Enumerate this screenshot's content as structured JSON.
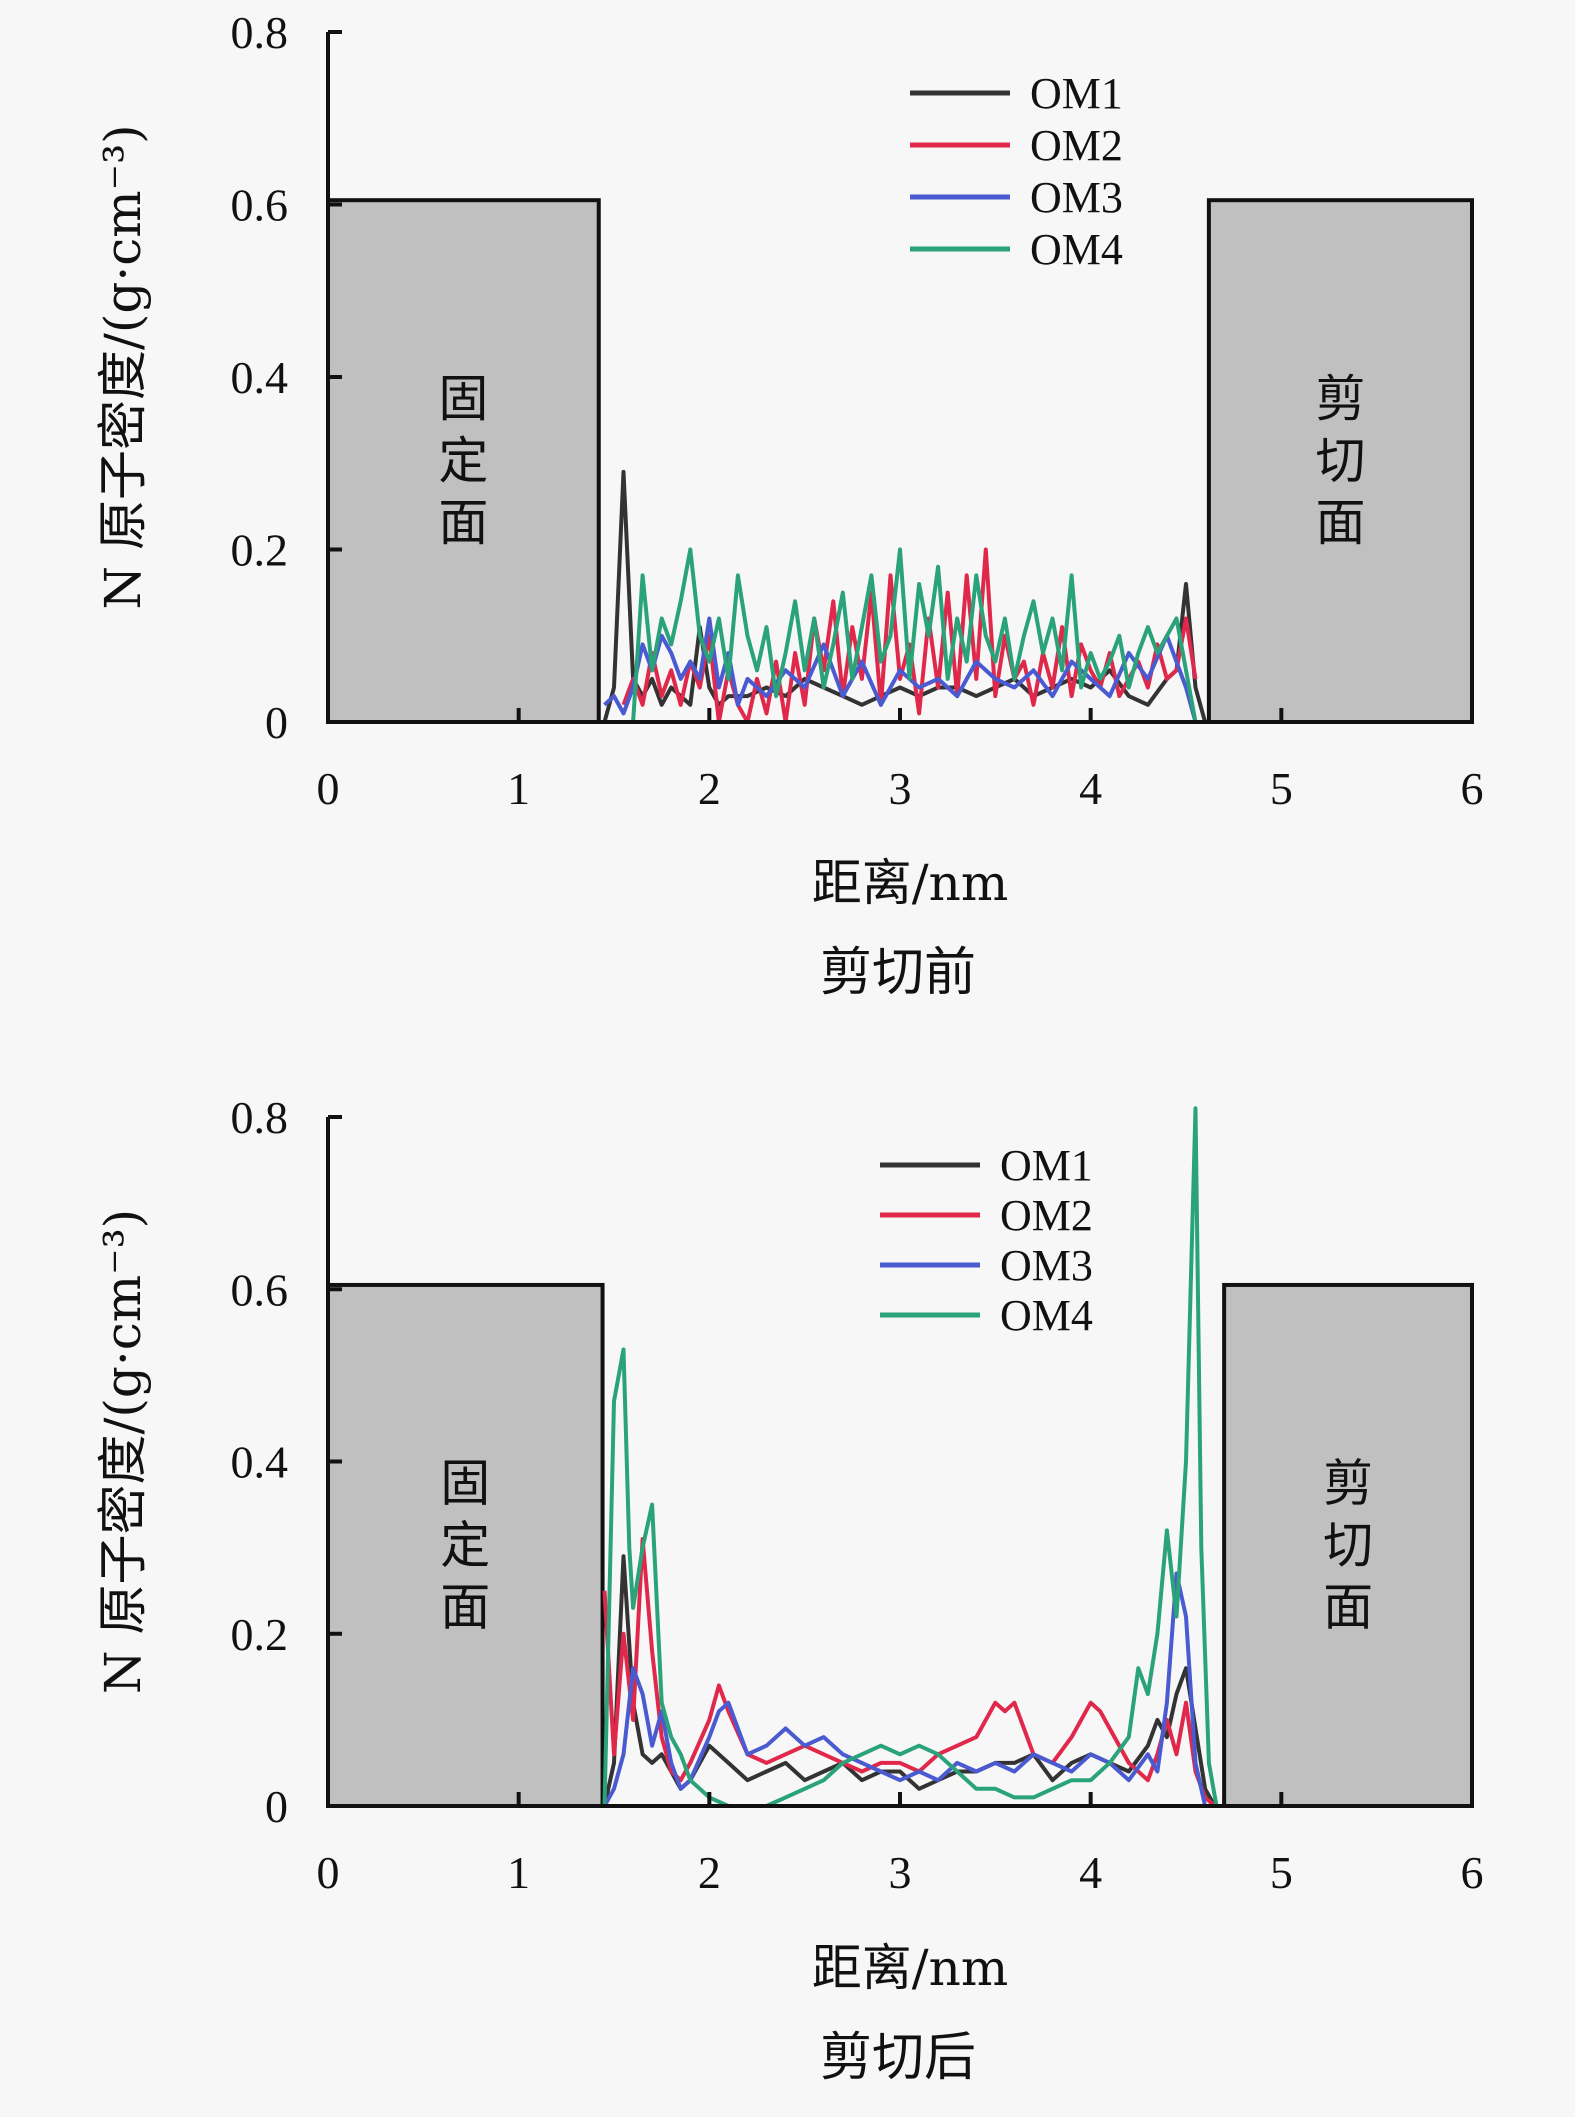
{
  "chart_data": [
    {
      "type": "line",
      "caption": "剪切前",
      "xlabel": "距离/nm",
      "ylabel": "N 原子密度/(g·cm⁻³)",
      "xlim": [
        0,
        6
      ],
      "ylim": [
        0,
        0.8
      ],
      "xticks": [
        "0",
        "1",
        "2",
        "3",
        "4",
        "5",
        "6"
      ],
      "yticks": [
        "0",
        "0.2",
        "0.4",
        "0.6",
        "0.8"
      ],
      "legend_position": "top-center",
      "regions": [
        {
          "label": "固定面",
          "x0": 0,
          "x1": 1.42,
          "y": 0.605
        },
        {
          "label": "剪切面",
          "x0": 4.62,
          "x1": 6.0,
          "y": 0.605
        }
      ],
      "series": [
        {
          "name": "OM1",
          "color": "#333333",
          "x": [
            1.45,
            1.5,
            1.55,
            1.6,
            1.65,
            1.7,
            1.75,
            1.8,
            1.85,
            1.9,
            1.95,
            2.0,
            2.05,
            2.1,
            2.2,
            2.3,
            2.4,
            2.5,
            2.6,
            2.7,
            2.8,
            2.9,
            3.0,
            3.1,
            3.2,
            3.3,
            3.4,
            3.5,
            3.6,
            3.7,
            3.8,
            3.9,
            4.0,
            4.1,
            4.2,
            4.3,
            4.4,
            4.45,
            4.5,
            4.55,
            4.6
          ],
          "y": [
            0.0,
            0.04,
            0.29,
            0.05,
            0.03,
            0.05,
            0.02,
            0.04,
            0.03,
            0.02,
            0.11,
            0.04,
            0.02,
            0.03,
            0.03,
            0.04,
            0.03,
            0.05,
            0.04,
            0.03,
            0.02,
            0.03,
            0.04,
            0.03,
            0.04,
            0.04,
            0.03,
            0.04,
            0.05,
            0.03,
            0.04,
            0.05,
            0.04,
            0.06,
            0.03,
            0.02,
            0.05,
            0.06,
            0.16,
            0.04,
            0.0
          ]
        },
        {
          "name": "OM2",
          "color": "#e0294a",
          "x": [
            1.55,
            1.6,
            1.65,
            1.7,
            1.75,
            1.8,
            1.85,
            1.9,
            1.95,
            2.0,
            2.05,
            2.1,
            2.15,
            2.2,
            2.25,
            2.3,
            2.35,
            2.4,
            2.45,
            2.5,
            2.55,
            2.6,
            2.65,
            2.7,
            2.75,
            2.8,
            2.85,
            2.9,
            2.95,
            3.0,
            3.05,
            3.1,
            3.15,
            3.2,
            3.25,
            3.3,
            3.35,
            3.4,
            3.45,
            3.5,
            3.55,
            3.6,
            3.65,
            3.7,
            3.75,
            3.8,
            3.85,
            3.9,
            3.95,
            4.0,
            4.05,
            4.1,
            4.15,
            4.2,
            4.25,
            4.3,
            4.35,
            4.4,
            4.45,
            4.5,
            4.55
          ],
          "y": [
            0.02,
            0.05,
            0.02,
            0.08,
            0.03,
            0.06,
            0.02,
            0.07,
            0.04,
            0.1,
            0.0,
            0.06,
            0.02,
            0.0,
            0.05,
            0.01,
            0.07,
            0.0,
            0.08,
            0.02,
            0.12,
            0.06,
            0.14,
            0.03,
            0.11,
            0.05,
            0.15,
            0.02,
            0.17,
            0.05,
            0.09,
            0.01,
            0.12,
            0.04,
            0.15,
            0.03,
            0.17,
            0.05,
            0.2,
            0.03,
            0.1,
            0.05,
            0.07,
            0.02,
            0.08,
            0.04,
            0.11,
            0.03,
            0.09,
            0.06,
            0.04,
            0.08,
            0.03,
            0.05,
            0.07,
            0.04,
            0.09,
            0.05,
            0.06,
            0.12,
            0.05
          ]
        },
        {
          "name": "OM3",
          "color": "#4a5ad0",
          "x": [
            1.45,
            1.5,
            1.55,
            1.6,
            1.65,
            1.7,
            1.75,
            1.8,
            1.85,
            1.9,
            1.95,
            2.0,
            2.05,
            2.1,
            2.15,
            2.2,
            2.3,
            2.4,
            2.5,
            2.6,
            2.7,
            2.8,
            2.9,
            3.0,
            3.1,
            3.2,
            3.3,
            3.4,
            3.5,
            3.6,
            3.7,
            3.8,
            3.9,
            4.0,
            4.1,
            4.2,
            4.3,
            4.4,
            4.5,
            4.55
          ],
          "y": [
            0.02,
            0.03,
            0.01,
            0.04,
            0.09,
            0.06,
            0.1,
            0.08,
            0.05,
            0.07,
            0.05,
            0.12,
            0.04,
            0.08,
            0.02,
            0.05,
            0.03,
            0.06,
            0.04,
            0.09,
            0.03,
            0.07,
            0.02,
            0.06,
            0.04,
            0.05,
            0.03,
            0.07,
            0.05,
            0.04,
            0.06,
            0.03,
            0.07,
            0.05,
            0.03,
            0.08,
            0.05,
            0.1,
            0.04,
            0.0
          ]
        },
        {
          "name": "OM4",
          "color": "#2aa37a",
          "x": [
            1.6,
            1.65,
            1.7,
            1.75,
            1.8,
            1.85,
            1.9,
            1.95,
            2.0,
            2.05,
            2.1,
            2.15,
            2.2,
            2.25,
            2.3,
            2.35,
            2.4,
            2.45,
            2.5,
            2.55,
            2.6,
            2.65,
            2.7,
            2.75,
            2.8,
            2.85,
            2.9,
            2.95,
            3.0,
            3.05,
            3.1,
            3.15,
            3.2,
            3.25,
            3.3,
            3.35,
            3.4,
            3.45,
            3.5,
            3.55,
            3.6,
            3.65,
            3.7,
            3.75,
            3.8,
            3.85,
            3.9,
            3.95,
            4.0,
            4.05,
            4.1,
            4.15,
            4.2,
            4.25,
            4.3,
            4.35,
            4.4,
            4.45,
            4.5,
            4.55
          ],
          "y": [
            0.0,
            0.17,
            0.06,
            0.12,
            0.09,
            0.14,
            0.2,
            0.1,
            0.07,
            0.12,
            0.05,
            0.17,
            0.1,
            0.06,
            0.11,
            0.03,
            0.08,
            0.14,
            0.06,
            0.12,
            0.04,
            0.09,
            0.15,
            0.05,
            0.11,
            0.17,
            0.07,
            0.1,
            0.2,
            0.05,
            0.16,
            0.1,
            0.18,
            0.05,
            0.12,
            0.07,
            0.17,
            0.1,
            0.07,
            0.12,
            0.05,
            0.1,
            0.14,
            0.08,
            0.12,
            0.06,
            0.17,
            0.04,
            0.08,
            0.05,
            0.07,
            0.1,
            0.04,
            0.08,
            0.11,
            0.08,
            0.1,
            0.12,
            0.06,
            0.0
          ]
        }
      ]
    },
    {
      "type": "line",
      "caption": "剪切后",
      "xlabel": "距离/nm",
      "ylabel": "N 原子密度/(g·cm⁻³)",
      "xlim": [
        0,
        6
      ],
      "ylim": [
        0,
        0.8
      ],
      "xticks": [
        "0",
        "1",
        "2",
        "3",
        "4",
        "5",
        "6"
      ],
      "yticks": [
        "0",
        "0.2",
        "0.4",
        "0.6",
        "0.8"
      ],
      "legend_position": "top-center",
      "regions": [
        {
          "label": "固定面",
          "x0": 0,
          "x1": 1.44,
          "y": 0.605
        },
        {
          "label": "剪切面",
          "x0": 4.7,
          "x1": 6.0,
          "y": 0.605
        }
      ],
      "series": [
        {
          "name": "OM1",
          "color": "#333333",
          "x": [
            1.45,
            1.5,
            1.55,
            1.6,
            1.65,
            1.7,
            1.75,
            1.8,
            1.85,
            1.9,
            2.0,
            2.1,
            2.2,
            2.3,
            2.4,
            2.5,
            2.6,
            2.7,
            2.8,
            2.9,
            3.0,
            3.1,
            3.2,
            3.3,
            3.4,
            3.5,
            3.6,
            3.7,
            3.8,
            3.9,
            4.0,
            4.1,
            4.2,
            4.3,
            4.35,
            4.4,
            4.45,
            4.5,
            4.55,
            4.6,
            4.65
          ],
          "y": [
            0.0,
            0.05,
            0.29,
            0.12,
            0.06,
            0.05,
            0.06,
            0.04,
            0.02,
            0.03,
            0.07,
            0.05,
            0.03,
            0.04,
            0.05,
            0.03,
            0.04,
            0.05,
            0.03,
            0.04,
            0.04,
            0.02,
            0.03,
            0.04,
            0.04,
            0.05,
            0.05,
            0.06,
            0.03,
            0.05,
            0.06,
            0.05,
            0.04,
            0.07,
            0.1,
            0.08,
            0.13,
            0.16,
            0.09,
            0.02,
            0.0
          ]
        },
        {
          "name": "OM2",
          "color": "#e0294a",
          "x": [
            1.45,
            1.5,
            1.55,
            1.6,
            1.65,
            1.7,
            1.75,
            1.8,
            1.85,
            1.9,
            2.0,
            2.05,
            2.1,
            2.2,
            2.3,
            2.4,
            2.5,
            2.6,
            2.7,
            2.8,
            2.9,
            3.0,
            3.1,
            3.2,
            3.3,
            3.4,
            3.5,
            3.55,
            3.6,
            3.7,
            3.8,
            3.9,
            4.0,
            4.05,
            4.1,
            4.2,
            4.3,
            4.35,
            4.4,
            4.45,
            4.5,
            4.55,
            4.6,
            4.65
          ],
          "y": [
            0.25,
            0.06,
            0.2,
            0.1,
            0.31,
            0.18,
            0.08,
            0.04,
            0.03,
            0.05,
            0.1,
            0.14,
            0.11,
            0.06,
            0.05,
            0.06,
            0.07,
            0.06,
            0.05,
            0.04,
            0.05,
            0.05,
            0.04,
            0.06,
            0.07,
            0.08,
            0.12,
            0.11,
            0.12,
            0.06,
            0.05,
            0.08,
            0.12,
            0.11,
            0.09,
            0.05,
            0.03,
            0.06,
            0.1,
            0.06,
            0.12,
            0.04,
            0.01,
            0.0
          ]
        },
        {
          "name": "OM3",
          "color": "#4a5ad0",
          "x": [
            1.45,
            1.5,
            1.55,
            1.6,
            1.65,
            1.7,
            1.75,
            1.8,
            1.85,
            1.9,
            2.0,
            2.05,
            2.1,
            2.2,
            2.3,
            2.4,
            2.5,
            2.6,
            2.7,
            2.8,
            2.9,
            3.0,
            3.1,
            3.2,
            3.3,
            3.4,
            3.5,
            3.6,
            3.7,
            3.8,
            3.9,
            4.0,
            4.1,
            4.2,
            4.3,
            4.35,
            4.4,
            4.45,
            4.5,
            4.55,
            4.6
          ],
          "y": [
            0.0,
            0.02,
            0.06,
            0.16,
            0.13,
            0.07,
            0.11,
            0.05,
            0.02,
            0.03,
            0.08,
            0.11,
            0.12,
            0.06,
            0.07,
            0.09,
            0.07,
            0.08,
            0.06,
            0.05,
            0.04,
            0.03,
            0.04,
            0.03,
            0.05,
            0.04,
            0.05,
            0.04,
            0.06,
            0.05,
            0.04,
            0.06,
            0.05,
            0.03,
            0.06,
            0.04,
            0.12,
            0.27,
            0.22,
            0.05,
            0.0
          ]
        },
        {
          "name": "OM4",
          "color": "#2aa37a",
          "x": [
            1.45,
            1.5,
            1.55,
            1.58,
            1.6,
            1.65,
            1.7,
            1.75,
            1.8,
            1.85,
            1.9,
            2.0,
            2.1,
            2.2,
            2.3,
            2.4,
            2.5,
            2.6,
            2.7,
            2.8,
            2.9,
            3.0,
            3.1,
            3.2,
            3.3,
            3.4,
            3.5,
            3.6,
            3.7,
            3.8,
            3.9,
            4.0,
            4.1,
            4.2,
            4.25,
            4.3,
            4.35,
            4.4,
            4.45,
            4.5,
            4.55,
            4.58,
            4.62,
            4.66
          ],
          "y": [
            0.0,
            0.47,
            0.53,
            0.3,
            0.23,
            0.3,
            0.35,
            0.12,
            0.08,
            0.06,
            0.03,
            0.01,
            0.0,
            0.0,
            0.0,
            0.01,
            0.02,
            0.03,
            0.05,
            0.06,
            0.07,
            0.06,
            0.07,
            0.06,
            0.04,
            0.02,
            0.02,
            0.01,
            0.01,
            0.02,
            0.03,
            0.03,
            0.05,
            0.08,
            0.16,
            0.13,
            0.2,
            0.32,
            0.22,
            0.4,
            0.81,
            0.3,
            0.05,
            0.0
          ]
        }
      ]
    }
  ]
}
